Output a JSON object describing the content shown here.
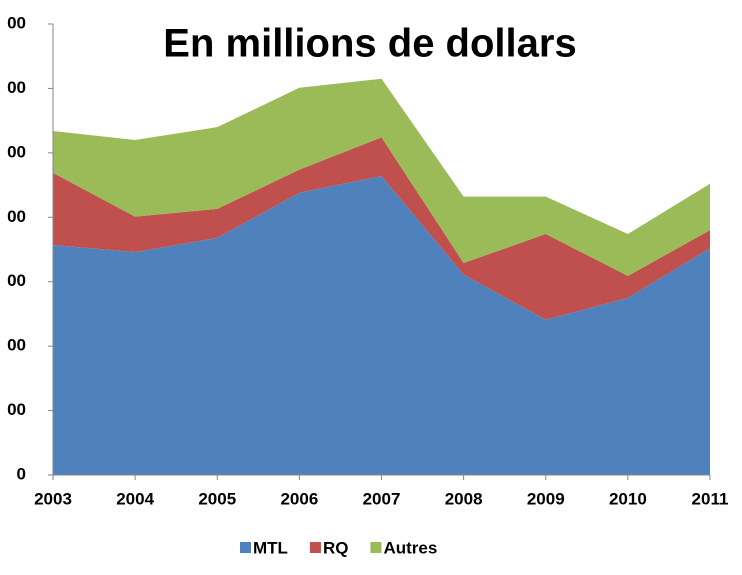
{
  "chart_data": {
    "type": "stacked-area",
    "title": "En millions de dollars",
    "categories": [
      "2003",
      "2004",
      "2005",
      "2006",
      "2007",
      "2008",
      "2009",
      "2010",
      "2011"
    ],
    "series": [
      {
        "name": "MTL",
        "color": "#4f81bd",
        "values": [
          357,
          346,
          368,
          438,
          464,
          311,
          241,
          275,
          352
        ]
      },
      {
        "name": "RQ",
        "color": "#c0504d",
        "values": [
          112,
          55,
          45,
          36,
          60,
          18,
          133,
          34,
          28
        ]
      },
      {
        "name": "Autres",
        "color": "#9bbb59",
        "values": [
          65,
          119,
          127,
          127,
          91,
          103,
          58,
          65,
          72
        ]
      }
    ],
    "ylim": [
      0,
      700
    ],
    "yticks": [
      0,
      {
        "value": 100,
        "label": "00"
      },
      {
        "value": 200,
        "label": "00"
      },
      {
        "value": 300,
        "label": "00"
      },
      {
        "value": 400,
        "label": "00"
      },
      {
        "value": 500,
        "label": "00"
      },
      {
        "value": 600,
        "label": "00"
      },
      {
        "value": 700,
        "label": "00"
      }
    ],
    "legend": "bottom"
  }
}
